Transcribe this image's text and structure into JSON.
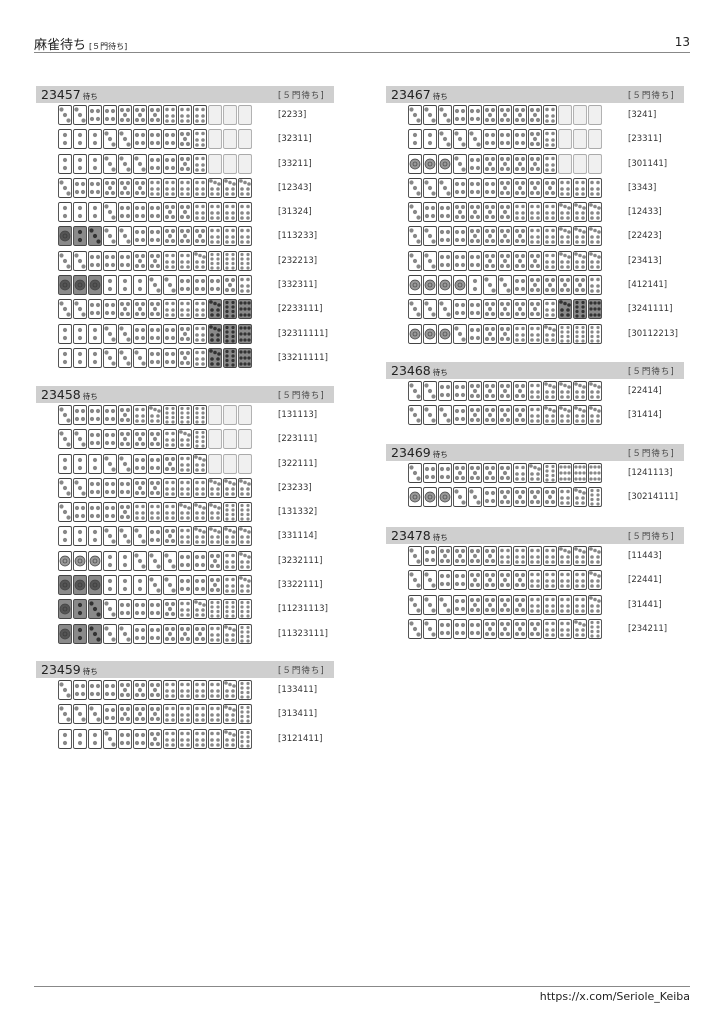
{
  "header": {
    "title": "麻雀待ち",
    "subtitle": "[５門待ち]",
    "page_number": "13"
  },
  "footer": {
    "link": "https://x.com/Seriole_Keiba"
  },
  "colors": {
    "header_bar": "#cfcfcf",
    "tile_dark": "#8a8a8a",
    "pip": "#888888"
  },
  "tile_legend": {
    "d": "dark-shaded tile",
    "m": "grey 1-pin on white tile",
    "x": "hidden/blank tile"
  },
  "sections": [
    {
      "title": "23457",
      "suffix": "待ち",
      "badge": "[５門待ち]",
      "rows": [
        {
          "pattern": "[2233]",
          "tiles": [
            "3",
            "3",
            "4",
            "4",
            "5",
            "5",
            "5",
            "6",
            "6",
            "6",
            "x",
            "x",
            "x"
          ]
        },
        {
          "pattern": "[32311]",
          "tiles": [
            "2",
            "2",
            "2",
            "3",
            "3",
            "4",
            "4",
            "4",
            "5",
            "6",
            "x",
            "x",
            "x"
          ]
        },
        {
          "pattern": "[33211]",
          "tiles": [
            "2",
            "2",
            "2",
            "3",
            "3",
            "3",
            "4",
            "4",
            "5",
            "6",
            "x",
            "x",
            "x"
          ]
        },
        {
          "pattern": "[12343]",
          "tiles": [
            "3",
            "4",
            "4",
            "5",
            "5",
            "5",
            "6",
            "6",
            "6",
            "6",
            "7",
            "7",
            "7"
          ]
        },
        {
          "pattern": "[31324]",
          "tiles": [
            "2",
            "2",
            "2",
            "3",
            "4",
            "4",
            "4",
            "5",
            "5",
            "6",
            "6",
            "6",
            "6"
          ]
        },
        {
          "pattern": "[113233]",
          "tiles": [
            "d1",
            "d2",
            "d3",
            "3",
            "3",
            "4",
            "4",
            "5",
            "5",
            "5",
            "6",
            "6",
            "6"
          ]
        },
        {
          "pattern": "[232213]",
          "tiles": [
            "3",
            "3",
            "4",
            "4",
            "4",
            "5",
            "5",
            "6",
            "6",
            "7",
            "8",
            "8",
            "8"
          ]
        },
        {
          "pattern": "[332311]",
          "tiles": [
            "d1",
            "d1",
            "d1",
            "2",
            "2",
            "2",
            "3",
            "3",
            "4",
            "4",
            "4",
            "5",
            "6"
          ]
        },
        {
          "pattern": "[2233111]",
          "tiles": [
            "3",
            "3",
            "4",
            "4",
            "5",
            "5",
            "5",
            "6",
            "6",
            "6",
            "d7",
            "d8",
            "d9"
          ]
        },
        {
          "pattern": "[32311111]",
          "tiles": [
            "2",
            "2",
            "2",
            "3",
            "3",
            "4",
            "4",
            "4",
            "5",
            "6",
            "d7",
            "d8",
            "d9"
          ]
        },
        {
          "pattern": "[33211111]",
          "tiles": [
            "2",
            "2",
            "2",
            "3",
            "3",
            "3",
            "4",
            "4",
            "5",
            "6",
            "d7",
            "d8",
            "d9"
          ]
        }
      ]
    },
    {
      "title": "23458",
      "suffix": "待ち",
      "badge": "[５門待ち]",
      "rows": [
        {
          "pattern": "[131113]",
          "tiles": [
            "3",
            "4",
            "4",
            "4",
            "5",
            "6",
            "7",
            "8",
            "8",
            "8",
            "x",
            "x",
            "x"
          ]
        },
        {
          "pattern": "[223111]",
          "tiles": [
            "3",
            "3",
            "4",
            "4",
            "5",
            "5",
            "5",
            "6",
            "7",
            "8",
            "x",
            "x",
            "x"
          ]
        },
        {
          "pattern": "[322111]",
          "tiles": [
            "2",
            "2",
            "2",
            "3",
            "3",
            "4",
            "4",
            "5",
            "6",
            "7",
            "x",
            "x",
            "x"
          ]
        },
        {
          "pattern": "[23233]",
          "tiles": [
            "3",
            "3",
            "4",
            "4",
            "4",
            "5",
            "5",
            "6",
            "6",
            "6",
            "7",
            "7",
            "7"
          ]
        },
        {
          "pattern": "[131332]",
          "tiles": [
            "3",
            "4",
            "4",
            "4",
            "5",
            "6",
            "6",
            "6",
            "7",
            "7",
            "7",
            "8",
            "8"
          ]
        },
        {
          "pattern": "[331114]",
          "tiles": [
            "2",
            "2",
            "2",
            "3",
            "3",
            "3",
            "4",
            "5",
            "6",
            "7",
            "7",
            "7",
            "7"
          ]
        },
        {
          "pattern": "[3232111]",
          "tiles": [
            "m1",
            "m1",
            "m1",
            "2",
            "2",
            "3",
            "3",
            "3",
            "4",
            "4",
            "5",
            "6",
            "7"
          ]
        },
        {
          "pattern": "[3322111]",
          "tiles": [
            "d1",
            "d1",
            "d1",
            "2",
            "2",
            "2",
            "3",
            "3",
            "4",
            "4",
            "5",
            "6",
            "7"
          ]
        },
        {
          "pattern": "[11231113]",
          "tiles": [
            "d1",
            "d2",
            "d3",
            "3",
            "4",
            "4",
            "4",
            "5",
            "6",
            "7",
            "8",
            "8",
            "8"
          ]
        },
        {
          "pattern": "[11323111]",
          "tiles": [
            "d1",
            "d2",
            "d3",
            "3",
            "3",
            "4",
            "4",
            "5",
            "5",
            "5",
            "6",
            "7",
            "8"
          ]
        }
      ]
    },
    {
      "title": "23459",
      "suffix": "待ち",
      "badge": "[５門待ち]",
      "rows": [
        {
          "pattern": "[133411]",
          "tiles": [
            "3",
            "4",
            "4",
            "4",
            "5",
            "5",
            "5",
            "6",
            "6",
            "6",
            "6",
            "7",
            "8"
          ]
        },
        {
          "pattern": "[313411]",
          "tiles": [
            "3",
            "3",
            "3",
            "4",
            "5",
            "5",
            "5",
            "6",
            "6",
            "6",
            "6",
            "7",
            "8"
          ]
        },
        {
          "pattern": "[3121411]",
          "tiles": [
            "2",
            "2",
            "2",
            "3",
            "4",
            "4",
            "5",
            "6",
            "6",
            "6",
            "6",
            "7",
            "8"
          ]
        }
      ]
    },
    {
      "title": "23467",
      "suffix": "待ち",
      "badge": "[５門待ち]",
      "rows": [
        {
          "pattern": "[3241]",
          "tiles": [
            "3",
            "3",
            "3",
            "4",
            "4",
            "5",
            "5",
            "5",
            "5",
            "6",
            "x",
            "x",
            "x"
          ]
        },
        {
          "pattern": "[23311]",
          "tiles": [
            "2",
            "2",
            "3",
            "3",
            "3",
            "4",
            "4",
            "4",
            "5",
            "6",
            "x",
            "x",
            "x"
          ]
        },
        {
          "pattern": "[301141]",
          "tiles": [
            "m1",
            "m1",
            "m1",
            "3",
            "4",
            "5",
            "5",
            "5",
            "5",
            "6",
            "x",
            "x",
            "x"
          ]
        },
        {
          "pattern": "[3343]",
          "tiles": [
            "3",
            "3",
            "3",
            "4",
            "4",
            "4",
            "5",
            "5",
            "5",
            "5",
            "6",
            "6",
            "6"
          ]
        },
        {
          "pattern": "[12433]",
          "tiles": [
            "3",
            "4",
            "4",
            "5",
            "5",
            "5",
            "5",
            "6",
            "6",
            "6",
            "7",
            "7",
            "7"
          ]
        },
        {
          "pattern": "[22423]",
          "tiles": [
            "3",
            "3",
            "4",
            "4",
            "5",
            "5",
            "5",
            "5",
            "6",
            "6",
            "7",
            "7",
            "7"
          ]
        },
        {
          "pattern": "[23413]",
          "tiles": [
            "3",
            "3",
            "4",
            "4",
            "4",
            "5",
            "5",
            "5",
            "5",
            "6",
            "7",
            "7",
            "7"
          ]
        },
        {
          "pattern": "[412141]",
          "tiles": [
            "m1",
            "m1",
            "m1",
            "m1",
            "2",
            "3",
            "3",
            "4",
            "5",
            "5",
            "5",
            "5",
            "6"
          ]
        },
        {
          "pattern": "[3241111]",
          "tiles": [
            "3",
            "3",
            "3",
            "4",
            "4",
            "5",
            "5",
            "5",
            "5",
            "6",
            "d7",
            "d8",
            "d9"
          ]
        },
        {
          "pattern": "[30112213]",
          "tiles": [
            "m1",
            "m1",
            "m1",
            "3",
            "4",
            "5",
            "5",
            "6",
            "6",
            "7",
            "8",
            "8",
            "8"
          ]
        }
      ]
    },
    {
      "title": "23468",
      "suffix": "待ち",
      "badge": "[５門待ち]",
      "rows": [
        {
          "pattern": "[22414]",
          "tiles": [
            "3",
            "3",
            "4",
            "4",
            "5",
            "5",
            "5",
            "5",
            "6",
            "7",
            "7",
            "7",
            "7"
          ]
        },
        {
          "pattern": "[31414]",
          "tiles": [
            "3",
            "3",
            "3",
            "4",
            "5",
            "5",
            "5",
            "5",
            "6",
            "7",
            "7",
            "7",
            "7"
          ]
        }
      ]
    },
    {
      "title": "23469",
      "suffix": "待ち",
      "badge": "[５門待ち]",
      "rows": [
        {
          "pattern": "[1241113]",
          "tiles": [
            "3",
            "4",
            "4",
            "5",
            "5",
            "5",
            "5",
            "6",
            "7",
            "8",
            "9",
            "9",
            "9"
          ]
        },
        {
          "pattern": "[30214111]",
          "tiles": [
            "m1",
            "m1",
            "m1",
            "3",
            "3",
            "4",
            "5",
            "5",
            "5",
            "5",
            "6",
            "7",
            "8"
          ]
        }
      ]
    },
    {
      "title": "23478",
      "suffix": "待ち",
      "badge": "[５門待ち]",
      "rows": [
        {
          "pattern": "[11443]",
          "tiles": [
            "3",
            "4",
            "5",
            "5",
            "5",
            "5",
            "6",
            "6",
            "6",
            "6",
            "7",
            "7",
            "7"
          ]
        },
        {
          "pattern": "[22441]",
          "tiles": [
            "3",
            "3",
            "4",
            "4",
            "5",
            "5",
            "5",
            "5",
            "6",
            "6",
            "6",
            "6",
            "7"
          ]
        },
        {
          "pattern": "[31441]",
          "tiles": [
            "3",
            "3",
            "3",
            "4",
            "5",
            "5",
            "5",
            "5",
            "6",
            "6",
            "6",
            "6",
            "7"
          ]
        },
        {
          "pattern": "[234211]",
          "tiles": [
            "3",
            "3",
            "4",
            "4",
            "4",
            "5",
            "5",
            "5",
            "5",
            "6",
            "6",
            "7",
            "8"
          ]
        }
      ]
    }
  ]
}
